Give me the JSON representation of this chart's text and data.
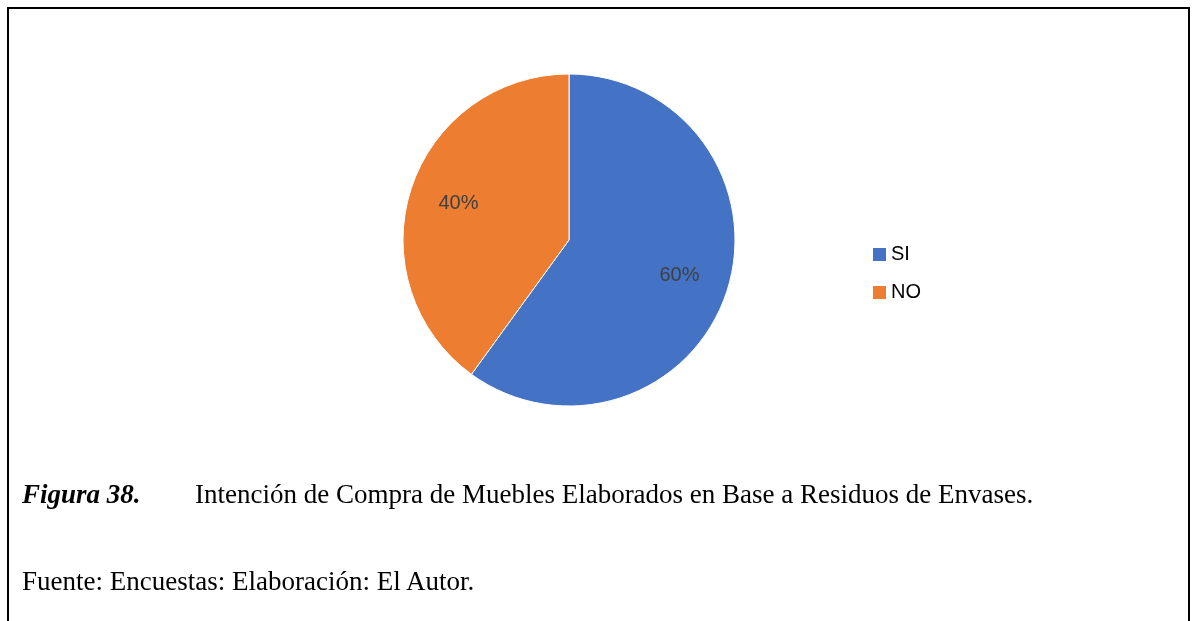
{
  "chart_data": {
    "type": "pie",
    "title": "Figura 38.",
    "subtitle": "Intención de Compra de Muebles Elaborados en Base a Residuos de Envases.",
    "annotations": [
      "Fuente: Encuestas: Elaboración: El Autor."
    ],
    "categories": [
      "SI",
      "NO"
    ],
    "values": [
      60,
      40
    ],
    "colors": [
      "#4472c4",
      "#ed7d31"
    ],
    "value_labels": [
      "60%",
      "40%"
    ],
    "legend": "right"
  }
}
